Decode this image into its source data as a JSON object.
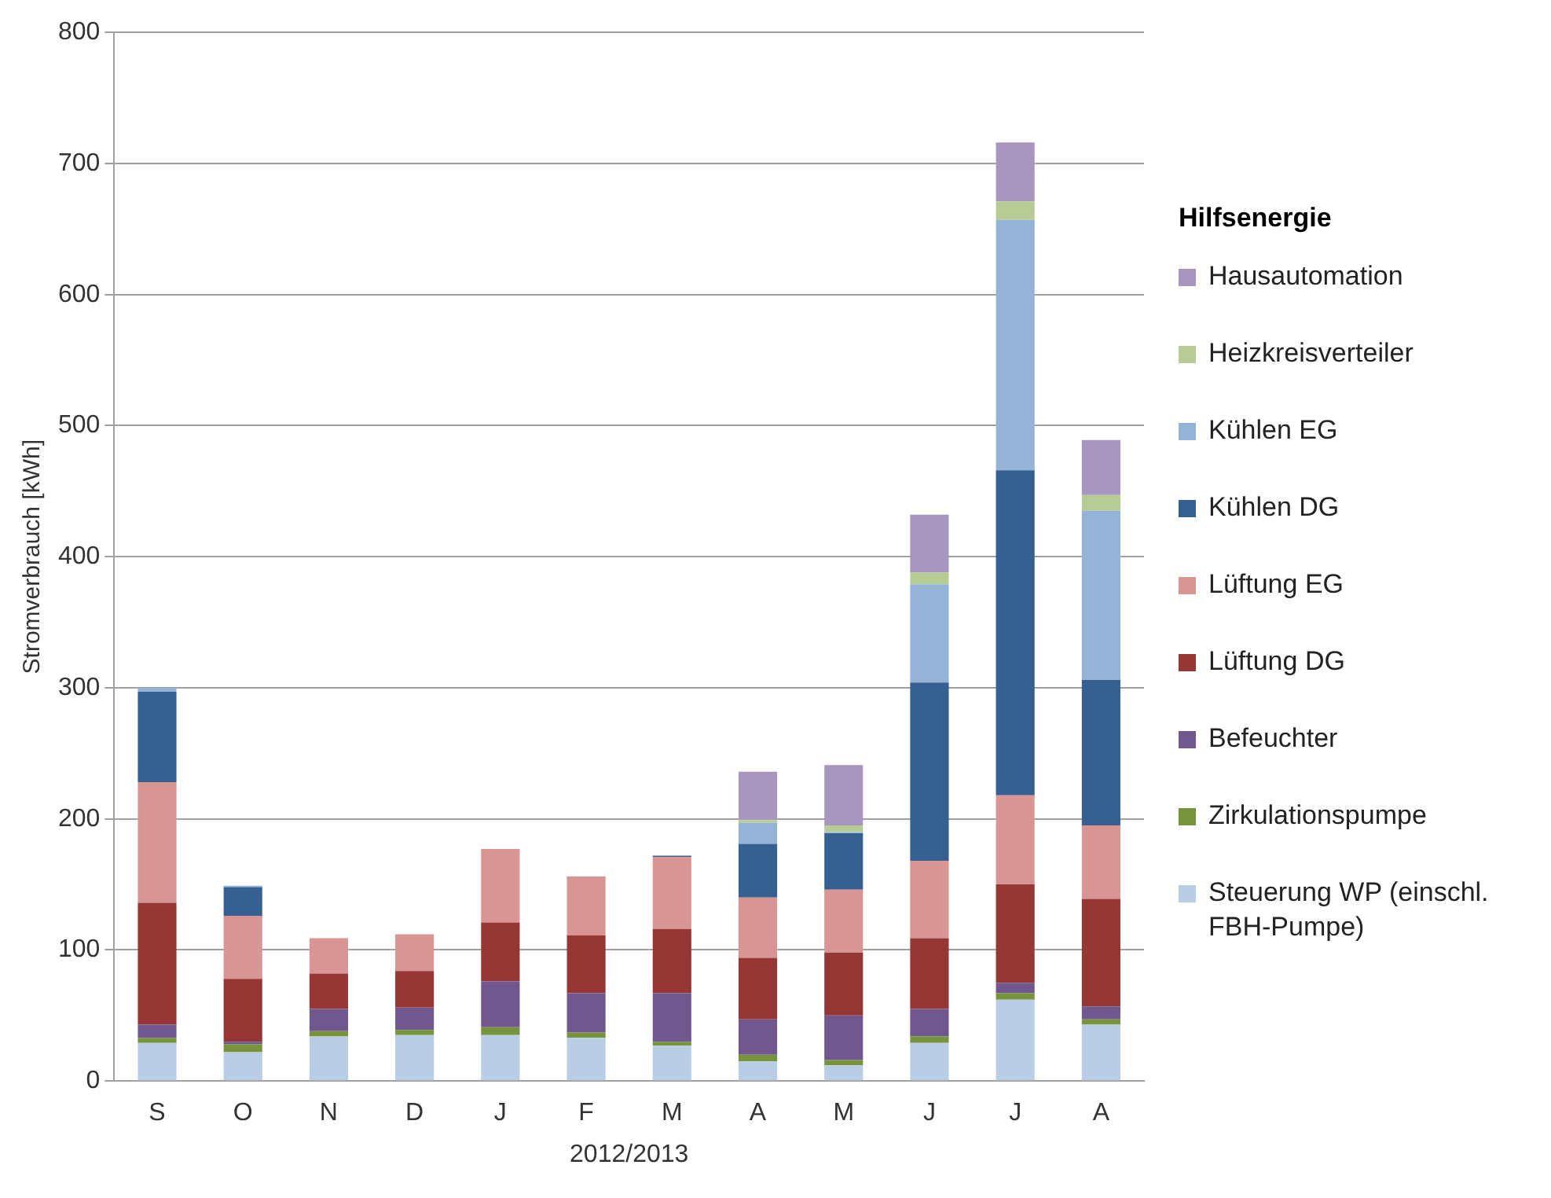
{
  "chart_data": {
    "type": "bar",
    "stacked": true,
    "xlabel": "2012/2013",
    "ylabel": "Stromverbrauch [kWh]",
    "legend_title": "Hilfsenergie",
    "legend": "right",
    "grid": "y",
    "categories": [
      "S",
      "O",
      "N",
      "D",
      "J",
      "F",
      "M",
      "A",
      "M",
      "J",
      "J",
      "A"
    ],
    "ylim": [
      0,
      800
    ],
    "yticks": [
      0,
      100,
      200,
      300,
      400,
      500,
      600,
      700,
      800
    ],
    "series": [
      {
        "name": "Steuerung WP (einschl. FBH-Pumpe)",
        "color": "#b9cde5",
        "values": [
          29,
          22,
          34,
          35,
          35,
          33,
          27,
          15,
          12,
          29,
          62,
          43
        ]
      },
      {
        "name": "Zirkulationspumpe",
        "color": "#77933c",
        "values": [
          4,
          6,
          4,
          4,
          6,
          4,
          3,
          5,
          4,
          5,
          5,
          4
        ]
      },
      {
        "name": "Befeuchter",
        "color": "#70588f",
        "values": [
          10,
          2,
          17,
          17,
          35,
          30,
          37,
          27,
          34,
          21,
          8,
          10
        ]
      },
      {
        "name": "Lüftung DG",
        "color": "#953735",
        "values": [
          93,
          48,
          27,
          28,
          45,
          44,
          49,
          47,
          48,
          54,
          75,
          82
        ]
      },
      {
        "name": "Lüftung EG",
        "color": "#d99594",
        "values": [
          92,
          48,
          27,
          28,
          56,
          45,
          55,
          46,
          48,
          59,
          68,
          56
        ]
      },
      {
        "name": "Kühlen DG",
        "color": "#366092",
        "values": [
          69,
          22,
          0,
          0,
          0,
          0,
          1,
          41,
          43,
          136,
          248,
          111
        ]
      },
      {
        "name": "Kühlen EG",
        "color": "#95b3d7",
        "values": [
          3,
          1,
          0,
          0,
          0,
          0,
          0,
          16,
          1,
          75,
          191,
          129
        ]
      },
      {
        "name": "Heizkreisverteiler",
        "color": "#b7cc94",
        "values": [
          0,
          0,
          0,
          0,
          0,
          0,
          0,
          2,
          5,
          9,
          14,
          12
        ]
      },
      {
        "name": "Hausautomation",
        "color": "#a797bf",
        "values": [
          0,
          0,
          0,
          0,
          0,
          0,
          0,
          37,
          46,
          44,
          45,
          42
        ]
      }
    ]
  }
}
